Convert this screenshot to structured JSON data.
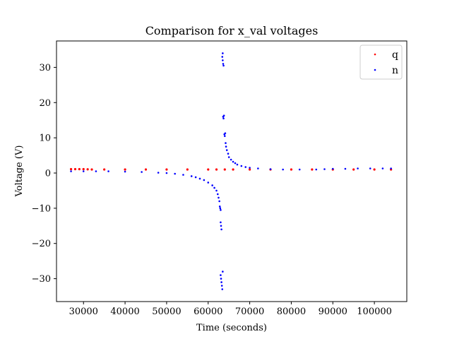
{
  "chart_data": {
    "type": "scatter",
    "title": "Comparison for x_val voltages",
    "xlabel": "Time (seconds)",
    "ylabel": "Voltage (V)",
    "xlim": [
      23500,
      107800
    ],
    "ylim": [
      -36.5,
      37.5
    ],
    "xticks": [
      30000,
      40000,
      50000,
      60000,
      70000,
      80000,
      90000,
      100000
    ],
    "xtick_labels": [
      "30000",
      "40000",
      "50000",
      "60000",
      "70000",
      "80000",
      "90000",
      "100000"
    ],
    "yticks": [
      -30,
      -20,
      -10,
      0,
      10,
      20,
      30
    ],
    "ytick_labels": [
      "−30",
      "−20",
      "−10",
      "0",
      "10",
      "20",
      "30"
    ],
    "grid": false,
    "legend_position": "top-right",
    "series": [
      {
        "name": "q",
        "color": "#ff0000",
        "points": [
          [
            27000,
            1.1
          ],
          [
            28000,
            1.1
          ],
          [
            29000,
            1.1
          ],
          [
            30000,
            1.1
          ],
          [
            31000,
            1.05
          ],
          [
            32000,
            1.0
          ],
          [
            35000,
            1.0
          ],
          [
            40000,
            1.0
          ],
          [
            45000,
            1.0
          ],
          [
            50000,
            1.0
          ],
          [
            55000,
            1.0
          ],
          [
            60000,
            1.0
          ],
          [
            62000,
            1.0
          ],
          [
            64000,
            1.0
          ],
          [
            66000,
            1.0
          ],
          [
            70000,
            1.0
          ],
          [
            75000,
            1.0
          ],
          [
            80000,
            1.0
          ],
          [
            85000,
            1.0
          ],
          [
            90000,
            1.0
          ],
          [
            95000,
            1.0
          ],
          [
            100000,
            1.0
          ],
          [
            104000,
            1.0
          ]
        ]
      },
      {
        "name": "n",
        "color": "#0000ff",
        "points": [
          [
            27000,
            0.5
          ],
          [
            30000,
            0.5
          ],
          [
            33000,
            0.5
          ],
          [
            36000,
            0.5
          ],
          [
            40000,
            0.4
          ],
          [
            44000,
            0.3
          ],
          [
            48000,
            0.1
          ],
          [
            50000,
            0.0
          ],
          [
            52000,
            -0.2
          ],
          [
            54000,
            -0.5
          ],
          [
            56000,
            -0.9
          ],
          [
            57000,
            -1.2
          ],
          [
            58000,
            -1.6
          ],
          [
            59000,
            -2.0
          ],
          [
            60000,
            -2.7
          ],
          [
            61000,
            -3.5
          ],
          [
            61500,
            -4.2
          ],
          [
            62000,
            -5.0
          ],
          [
            62300,
            -6.0
          ],
          [
            62500,
            -7.0
          ],
          [
            62700,
            -8.0
          ],
          [
            62800,
            -9.5
          ],
          [
            62900,
            -10.0
          ],
          [
            63000,
            -10.5
          ],
          [
            63000,
            -14.0
          ],
          [
            63100,
            -15.0
          ],
          [
            63200,
            -16.0
          ],
          [
            63000,
            -29.0
          ],
          [
            63100,
            -30.0
          ],
          [
            63200,
            -31.0
          ],
          [
            63300,
            -32.0
          ],
          [
            63400,
            -33.0
          ],
          [
            63500,
            -28.0
          ],
          [
            63400,
            33.0
          ],
          [
            63500,
            32.0
          ],
          [
            63600,
            31.0
          ],
          [
            63700,
            30.5
          ],
          [
            63500,
            34.0
          ],
          [
            63600,
            16.0
          ],
          [
            63700,
            15.5
          ],
          [
            63800,
            16.3
          ],
          [
            63900,
            11.0
          ],
          [
            64000,
            10.5
          ],
          [
            64100,
            11.3
          ],
          [
            64200,
            8.5
          ],
          [
            64300,
            7.5
          ],
          [
            64500,
            6.5
          ],
          [
            64800,
            5.5
          ],
          [
            65000,
            4.5
          ],
          [
            65500,
            3.8
          ],
          [
            66000,
            3.2
          ],
          [
            66500,
            2.8
          ],
          [
            67000,
            2.4
          ],
          [
            68000,
            2.0
          ],
          [
            69000,
            1.7
          ],
          [
            70000,
            1.5
          ],
          [
            72000,
            1.3
          ],
          [
            75000,
            1.1
          ],
          [
            78000,
            1.0
          ],
          [
            82000,
            1.0
          ],
          [
            86000,
            1.0
          ],
          [
            88000,
            1.1
          ],
          [
            90000,
            1.2
          ],
          [
            93000,
            1.2
          ],
          [
            96000,
            1.3
          ],
          [
            99000,
            1.3
          ],
          [
            102000,
            1.3
          ],
          [
            104000,
            1.3
          ]
        ]
      }
    ]
  }
}
